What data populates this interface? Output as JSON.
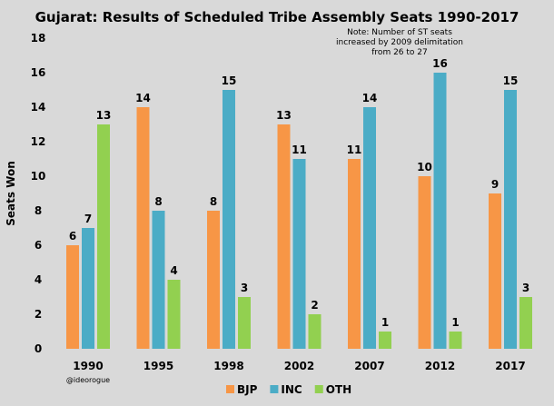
{
  "chart_data": {
    "type": "bar",
    "title": "Gujarat: Results of Scheduled Tribe Assembly Seats 1990-2017",
    "annotation": "Note: Number of ST seats increased by 2009 delimitation from 26 to 27",
    "annotation_lines": [
      "Note: Number of ST seats",
      "increased by 2009 delimitation",
      "from 26 to 27"
    ],
    "credit": "@ideorogue",
    "xlabel": "",
    "ylabel": "Seats Won",
    "ylim": [
      0,
      18
    ],
    "yticks": [
      0,
      2,
      4,
      6,
      8,
      10,
      12,
      14,
      16,
      18
    ],
    "grid": false,
    "legend_placement": "bottom",
    "categories": [
      "1990",
      "1995",
      "1998",
      "2002",
      "2007",
      "2012",
      "2017"
    ],
    "series": [
      {
        "name": "BJP",
        "color": "#f79646",
        "values": [
          6,
          14,
          8,
          13,
          11,
          10,
          9
        ]
      },
      {
        "name": "INC",
        "color": "#4bacc6",
        "values": [
          7,
          8,
          15,
          11,
          14,
          16,
          15
        ]
      },
      {
        "name": "OTH",
        "color": "#92d050",
        "values": [
          13,
          4,
          3,
          2,
          1,
          1,
          3
        ]
      }
    ]
  }
}
